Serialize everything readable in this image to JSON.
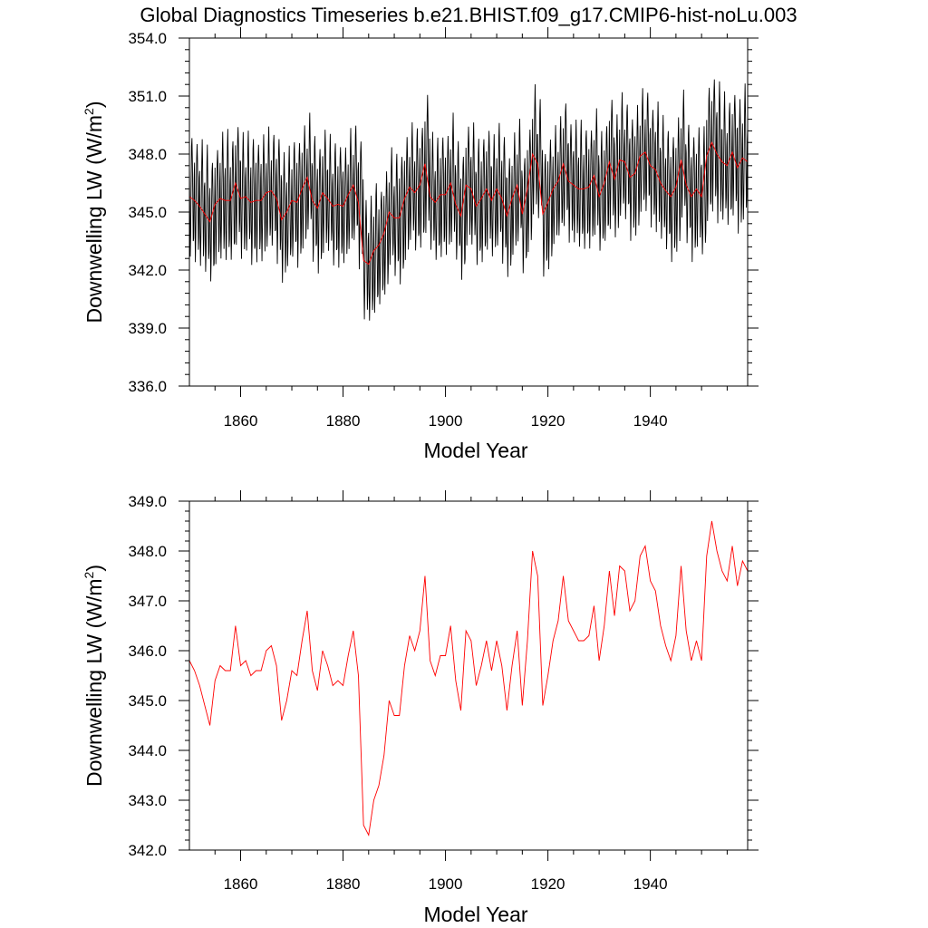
{
  "title": "Global Diagnostics Timeseries b.e21.BHIST.f09_g17.CMIP6-hist-noLu.003",
  "colors": {
    "monthly": "#000000",
    "annual": "#ff0000",
    "axes": "#000000"
  },
  "chart_data": [
    {
      "type": "line",
      "xlabel": "Model Year",
      "ylabel": {
        "base": "Downwelling LW (W/m",
        "sup": "2",
        "close": ")"
      },
      "xlim": [
        1850,
        1959
      ],
      "ylim": [
        336.0,
        354.0
      ],
      "xticks": [
        1860,
        1880,
        1900,
        1920,
        1940
      ],
      "xtick_labels": [
        "1860",
        "1880",
        "1900",
        "1920",
        "1940"
      ],
      "yticks": [
        336.0,
        339.0,
        342.0,
        345.0,
        348.0,
        351.0,
        354.0
      ],
      "ytick_labels": [
        "336.0",
        "339.0",
        "342.0",
        "345.0",
        "348.0",
        "351.0",
        "354.0"
      ],
      "grid": false,
      "series": [
        {
          "kind": "monthly",
          "color": "#000000",
          "x_start": 1850.0,
          "x_step": 0.0833333,
          "seasonal_amplitude": [
            3.2,
            3.1,
            3.3,
            3.4,
            3.2,
            3.0,
            3.3,
            3.5,
            3.2,
            3.1,
            3.3,
            3.2,
            3.4,
            3.1,
            3.3,
            3.2,
            3.0,
            3.3,
            3.4,
            3.2,
            3.1,
            3.3,
            3.2,
            3.1,
            3.4,
            3.3,
            3.2,
            3.1,
            3.3,
            3.2,
            3.0,
            3.2,
            3.1,
            3.4,
            3.1,
            3.3,
            3.5,
            3.0,
            3.2,
            3.1,
            3.3,
            3.4,
            3.2,
            3.1,
            3.3,
            3.2,
            3.6,
            3.1,
            3.3,
            3.2,
            3.1,
            3.4,
            3.2,
            3.3,
            3.1,
            3.2,
            3.4,
            3.3,
            3.1,
            3.2,
            3.3,
            3.4,
            3.1,
            3.2,
            3.3,
            3.1,
            3.2,
            3.4,
            3.2,
            3.3,
            3.4,
            3.1,
            3.2,
            3.3,
            3.1,
            3.2,
            3.4,
            3.2,
            3.1,
            3.3,
            3.2,
            3.1,
            3.4,
            3.2,
            3.3,
            3.1,
            3.2,
            3.4,
            3.3,
            3.2,
            3.1,
            3.4,
            3.3,
            3.2,
            3.3,
            3.5,
            3.4,
            3.2,
            3.3,
            3.1,
            3.4,
            3.6,
            3.5,
            3.7,
            3.4,
            3.3,
            3.2,
            3.5,
            3.6,
            3.5
          ]
        },
        {
          "kind": "annual",
          "color": "#ff0000",
          "x": [
            1850,
            1851,
            1852,
            1853,
            1854,
            1855,
            1856,
            1857,
            1858,
            1859,
            1860,
            1861,
            1862,
            1863,
            1864,
            1865,
            1866,
            1867,
            1868,
            1869,
            1870,
            1871,
            1872,
            1873,
            1874,
            1875,
            1876,
            1877,
            1878,
            1879,
            1880,
            1881,
            1882,
            1883,
            1884,
            1885,
            1886,
            1887,
            1888,
            1889,
            1890,
            1891,
            1892,
            1893,
            1894,
            1895,
            1896,
            1897,
            1898,
            1899,
            1900,
            1901,
            1902,
            1903,
            1904,
            1905,
            1906,
            1907,
            1908,
            1909,
            1910,
            1911,
            1912,
            1913,
            1914,
            1915,
            1916,
            1917,
            1918,
            1919,
            1920,
            1921,
            1922,
            1923,
            1924,
            1925,
            1926,
            1927,
            1928,
            1929,
            1930,
            1931,
            1932,
            1933,
            1934,
            1935,
            1936,
            1937,
            1938,
            1939,
            1940,
            1941,
            1942,
            1943,
            1944,
            1945,
            1946,
            1947,
            1948,
            1949,
            1950,
            1951,
            1952,
            1953,
            1954,
            1955,
            1956,
            1957,
            1958,
            1959
          ],
          "values": [
            345.8,
            345.6,
            345.3,
            344.9,
            344.5,
            345.4,
            345.7,
            345.6,
            345.6,
            346.5,
            345.7,
            345.8,
            345.5,
            345.6,
            345.6,
            346.0,
            346.1,
            345.7,
            344.6,
            345.0,
            345.6,
            345.5,
            346.2,
            346.8,
            345.6,
            345.2,
            346.0,
            345.7,
            345.3,
            345.4,
            345.3,
            345.9,
            346.4,
            345.5,
            342.5,
            342.3,
            343.0,
            343.3,
            343.9,
            345.0,
            344.7,
            344.7,
            345.7,
            346.3,
            346.0,
            346.4,
            347.5,
            345.8,
            345.5,
            345.9,
            345.9,
            346.5,
            345.4,
            344.8,
            346.4,
            346.2,
            345.3,
            345.7,
            346.2,
            345.6,
            346.2,
            345.7,
            344.8,
            345.7,
            346.4,
            344.9,
            346.2,
            348.0,
            347.5,
            344.9,
            345.5,
            346.2,
            346.6,
            347.5,
            346.6,
            346.4,
            346.2,
            346.2,
            346.3,
            346.9,
            345.8,
            346.5,
            347.6,
            346.7,
            347.7,
            347.6,
            346.8,
            347.0,
            347.9,
            348.1,
            347.4,
            347.2,
            346.5,
            346.1,
            345.8,
            346.3,
            347.7,
            346.4,
            345.8,
            346.2,
            345.8,
            347.9,
            348.6,
            348.0,
            347.6,
            347.4,
            348.1,
            347.3,
            347.8,
            347.6
          ]
        }
      ]
    },
    {
      "type": "line",
      "xlabel": "Model Year",
      "ylabel": {
        "base": "Downwelling LW (W/m",
        "sup": "2",
        "close": ")"
      },
      "xlim": [
        1850,
        1959
      ],
      "ylim": [
        342.0,
        349.0
      ],
      "xticks": [
        1860,
        1880,
        1900,
        1920,
        1940
      ],
      "xtick_labels": [
        "1860",
        "1880",
        "1900",
        "1920",
        "1940"
      ],
      "yticks": [
        342.0,
        343.0,
        344.0,
        345.0,
        346.0,
        347.0,
        348.0,
        349.0
      ],
      "ytick_labels": [
        "342.0",
        "343.0",
        "344.0",
        "345.0",
        "346.0",
        "347.0",
        "348.0",
        "349.0"
      ],
      "grid": false,
      "series": [
        {
          "kind": "annual",
          "color": "#ff0000",
          "x": [
            1850,
            1851,
            1852,
            1853,
            1854,
            1855,
            1856,
            1857,
            1858,
            1859,
            1860,
            1861,
            1862,
            1863,
            1864,
            1865,
            1866,
            1867,
            1868,
            1869,
            1870,
            1871,
            1872,
            1873,
            1874,
            1875,
            1876,
            1877,
            1878,
            1879,
            1880,
            1881,
            1882,
            1883,
            1884,
            1885,
            1886,
            1887,
            1888,
            1889,
            1890,
            1891,
            1892,
            1893,
            1894,
            1895,
            1896,
            1897,
            1898,
            1899,
            1900,
            1901,
            1902,
            1903,
            1904,
            1905,
            1906,
            1907,
            1908,
            1909,
            1910,
            1911,
            1912,
            1913,
            1914,
            1915,
            1916,
            1917,
            1918,
            1919,
            1920,
            1921,
            1922,
            1923,
            1924,
            1925,
            1926,
            1927,
            1928,
            1929,
            1930,
            1931,
            1932,
            1933,
            1934,
            1935,
            1936,
            1937,
            1938,
            1939,
            1940,
            1941,
            1942,
            1943,
            1944,
            1945,
            1946,
            1947,
            1948,
            1949,
            1950,
            1951,
            1952,
            1953,
            1954,
            1955,
            1956,
            1957,
            1958,
            1959
          ],
          "values": [
            345.8,
            345.6,
            345.3,
            344.9,
            344.5,
            345.4,
            345.7,
            345.6,
            345.6,
            346.5,
            345.7,
            345.8,
            345.5,
            345.6,
            345.6,
            346.0,
            346.1,
            345.7,
            344.6,
            345.0,
            345.6,
            345.5,
            346.2,
            346.8,
            345.6,
            345.2,
            346.0,
            345.7,
            345.3,
            345.4,
            345.3,
            345.9,
            346.4,
            345.5,
            342.5,
            342.3,
            343.0,
            343.3,
            343.9,
            345.0,
            344.7,
            344.7,
            345.7,
            346.3,
            346.0,
            346.4,
            347.5,
            345.8,
            345.5,
            345.9,
            345.9,
            346.5,
            345.4,
            344.8,
            346.4,
            346.2,
            345.3,
            345.7,
            346.2,
            345.6,
            346.2,
            345.7,
            344.8,
            345.7,
            346.4,
            344.9,
            346.2,
            348.0,
            347.5,
            344.9,
            345.5,
            346.2,
            346.6,
            347.5,
            346.6,
            346.4,
            346.2,
            346.2,
            346.3,
            346.9,
            345.8,
            346.5,
            347.6,
            346.7,
            347.7,
            347.6,
            346.8,
            347.0,
            347.9,
            348.1,
            347.4,
            347.2,
            346.5,
            346.1,
            345.8,
            346.3,
            347.7,
            346.4,
            345.8,
            346.2,
            345.8,
            347.9,
            348.6,
            348.0,
            347.6,
            347.4,
            348.1,
            347.3,
            347.8,
            347.6
          ]
        }
      ]
    }
  ]
}
